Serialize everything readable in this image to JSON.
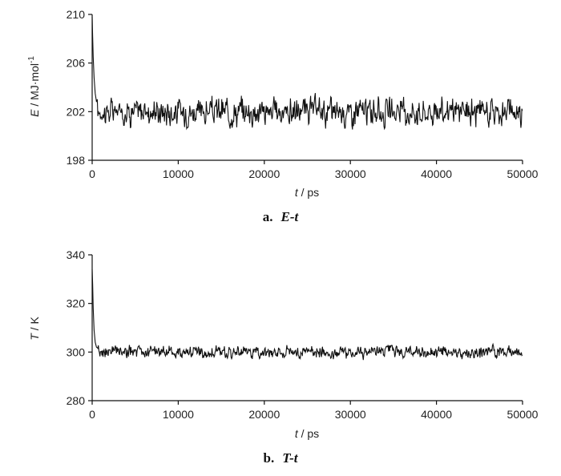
{
  "chart_data": [
    {
      "type": "line",
      "xlabel_var": "t",
      "xlabel_unit": " / ps",
      "ylabel_var": "E",
      "ylabel_unit": " / MJ·mol",
      "ylabel_sup": "-1",
      "caption_letter": "a.",
      "caption_title": "E-t",
      "x_ticks": [
        "0",
        "10000",
        "20000",
        "30000",
        "40000",
        "50000"
      ],
      "y_ticks": [
        "198",
        "202",
        "206",
        "210"
      ],
      "xlim": [
        0,
        50000
      ],
      "ylim": [
        198,
        210
      ],
      "grid": false,
      "series": [
        {
          "equilibrium": 202,
          "noise": 0.7,
          "spikes": [
            [
              0,
              209.8
            ],
            [
              60,
              208.2
            ],
            [
              120,
              206.5
            ],
            [
              220,
              204.8
            ],
            [
              350,
              203.5
            ],
            [
              500,
              202.8
            ]
          ]
        }
      ]
    },
    {
      "type": "line",
      "xlabel_var": "t",
      "xlabel_unit": " / ps",
      "ylabel_var": "T",
      "ylabel_unit": " / K",
      "caption_letter": "b.",
      "caption_title": "T-t",
      "x_ticks": [
        "0",
        "10000",
        "20000",
        "30000",
        "40000",
        "50000"
      ],
      "y_ticks": [
        "280",
        "300",
        "320",
        "340"
      ],
      "xlim": [
        0,
        50000
      ],
      "ylim": [
        280,
        340
      ],
      "grid": false,
      "series": [
        {
          "equilibrium": 300,
          "noise": 1.6,
          "spikes": [
            [
              0,
              334
            ],
            [
              60,
              328
            ],
            [
              120,
              318
            ],
            [
              220,
              309
            ],
            [
              350,
              304
            ],
            [
              500,
              302
            ]
          ]
        }
      ]
    }
  ],
  "line_color": "#111111"
}
